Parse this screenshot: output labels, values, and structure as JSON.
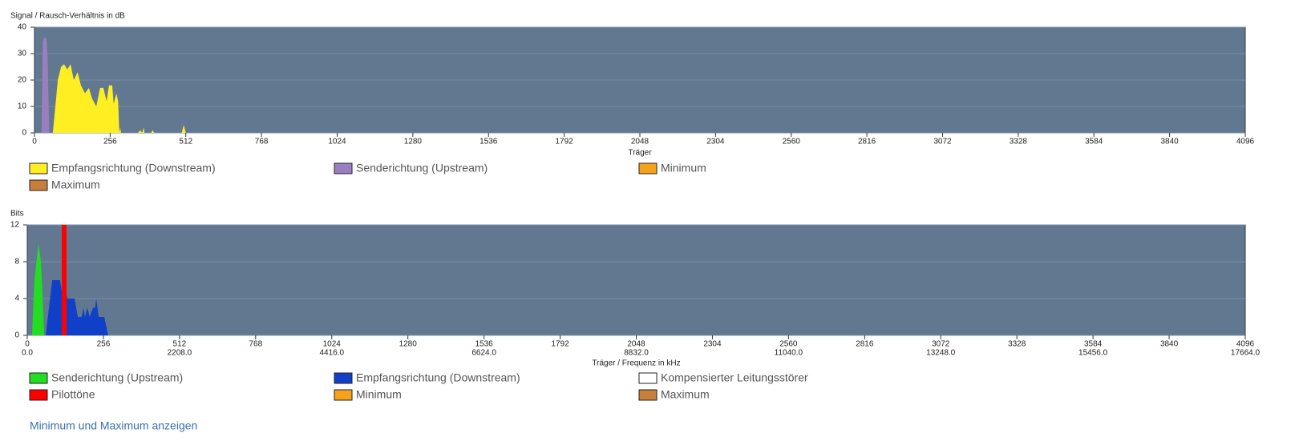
{
  "chart_data": [
    {
      "type": "area",
      "ylabel": "Signal / Rausch-Verhältnis in dB",
      "xlabel": "Träger",
      "xlim": [
        0,
        4096
      ],
      "xticks": [
        0,
        256,
        512,
        768,
        1024,
        1280,
        1536,
        1792,
        2048,
        2304,
        2560,
        2816,
        3072,
        3328,
        3584,
        3840,
        4096
      ],
      "ylim": [
        0,
        40
      ],
      "yticks": [
        0,
        10,
        20,
        30,
        40
      ],
      "grid": true,
      "series": [
        {
          "name": "Empfangsrichtung (Downstream)",
          "color": "#ffee22",
          "x": [
            62,
            79,
            90,
            100,
            111,
            122,
            133,
            146,
            157,
            171,
            184,
            195,
            209,
            222,
            233,
            244,
            252,
            263,
            268,
            277,
            283,
            287,
            290,
            293,
            350,
            358,
            364,
            370,
            372,
            375,
            395,
            400,
            405,
            498,
            505,
            512
          ],
          "values": [
            0,
            20,
            25,
            26,
            24,
            26,
            20,
            23,
            18,
            15,
            17,
            13,
            10,
            17,
            17,
            12,
            18,
            18,
            11,
            15,
            12,
            0,
            2,
            0,
            0,
            1,
            0,
            2,
            0,
            0,
            0,
            1,
            0,
            0,
            3,
            0
          ]
        },
        {
          "name": "Senderichtung (Upstream)",
          "color": "#9a7fc0",
          "x": [
            24,
            28,
            32,
            40,
            44,
            50
          ],
          "values": [
            0,
            34,
            36,
            36,
            30,
            0
          ]
        },
        {
          "name": "Minimum",
          "color": "#f7a21b"
        },
        {
          "name": "Maximum",
          "color": "#c87f3a"
        }
      ]
    },
    {
      "type": "area",
      "ylabel": "Bits",
      "xlabel": "Träger / Frequenz in kHz",
      "xlim": [
        0,
        4096
      ],
      "xticks": [
        0,
        256,
        512,
        768,
        1024,
        1280,
        1536,
        1792,
        2048,
        2304,
        2560,
        2816,
        3072,
        3328,
        3584,
        3840,
        4096
      ],
      "x2lim": [
        0,
        17664
      ],
      "x2ticks": [
        {
          "value": 0,
          "label": "0.0"
        },
        {
          "value": 2208,
          "label": "2208.0"
        },
        {
          "value": 4416,
          "label": "4416.0"
        },
        {
          "value": 6624,
          "label": "6624.0"
        },
        {
          "value": 8832,
          "label": "8832.0"
        },
        {
          "value": 11040,
          "label": "11040.0"
        },
        {
          "value": 13248,
          "label": "13248.0"
        },
        {
          "value": 15456,
          "label": "15456.0"
        },
        {
          "value": 17664,
          "label": "17664.0"
        }
      ],
      "ylim": [
        0,
        12
      ],
      "yticks": [
        0,
        4,
        8,
        12
      ],
      "grid": true,
      "series": [
        {
          "name": "Senderichtung (Upstream)",
          "color": "#22dd22",
          "x": [
            16,
            24,
            38,
            46,
            52,
            57
          ],
          "values": [
            0,
            6,
            10,
            8,
            4,
            0
          ]
        },
        {
          "name": "Empfangsrichtung (Downstream)",
          "color": "#1040c8",
          "x": [
            62,
            84,
            110,
            120,
            128,
            135,
            145,
            159,
            170,
            183,
            189,
            194,
            202,
            210,
            221,
            228,
            232,
            240,
            253,
            259,
            272
          ],
          "values": [
            0,
            6,
            6,
            4,
            5,
            4,
            4,
            4,
            2,
            2,
            3,
            2,
            3,
            2,
            3,
            3,
            4,
            2,
            2,
            2,
            0
          ]
        },
        {
          "name": "Kompensierter Leitungsstörer",
          "color": "#ffffff"
        },
        {
          "name": "Pilottöne",
          "color": "#ff0000",
          "kind": "bar",
          "x": [
            124
          ],
          "values": [
            12
          ]
        },
        {
          "name": "Minimum",
          "color": "#f7a21b"
        },
        {
          "name": "Maximum",
          "color": "#c87f3a"
        }
      ]
    }
  ],
  "link": "Minimum und Maximum anzeigen"
}
